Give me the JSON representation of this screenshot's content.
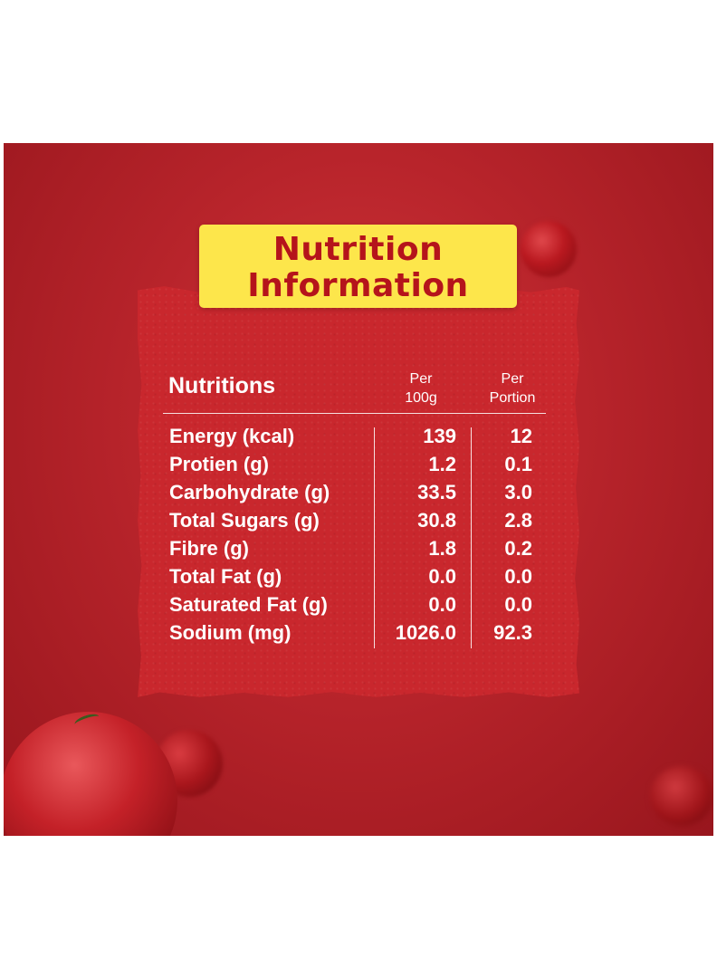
{
  "title": {
    "line1": "Nutrition",
    "line2": "Information"
  },
  "table": {
    "header": {
      "nutrient": "Nutritions",
      "per100_line1": "Per",
      "per100_line2": "100g",
      "perPortion_line1": "Per",
      "perPortion_line2": "Portion"
    },
    "rows": [
      {
        "name": "Energy (kcal)",
        "per100": "139",
        "perPortion": "12"
      },
      {
        "name": "Protien (g)",
        "per100": "1.2",
        "perPortion": "0.1"
      },
      {
        "name": "Carbohydrate (g)",
        "per100": "33.5",
        "perPortion": "3.0"
      },
      {
        "name": "Total Sugars (g)",
        "per100": "30.8",
        "perPortion": "2.8"
      },
      {
        "name": "Fibre (g)",
        "per100": "1.8",
        "perPortion": "0.2"
      },
      {
        "name": "Total Fat (g)",
        "per100": "0.0",
        "perPortion": "0.0"
      },
      {
        "name": "Saturated Fat (g)",
        "per100": "0.0",
        "perPortion": "0.0"
      },
      {
        "name": "Sodium (mg)",
        "per100": "1026.0",
        "perPortion": "92.3"
      }
    ]
  },
  "colors": {
    "background": "#b8242b",
    "paper": "#c9272d",
    "title_box": "#fde64b",
    "title_text": "#b5141b",
    "table_text": "#ffffff"
  }
}
